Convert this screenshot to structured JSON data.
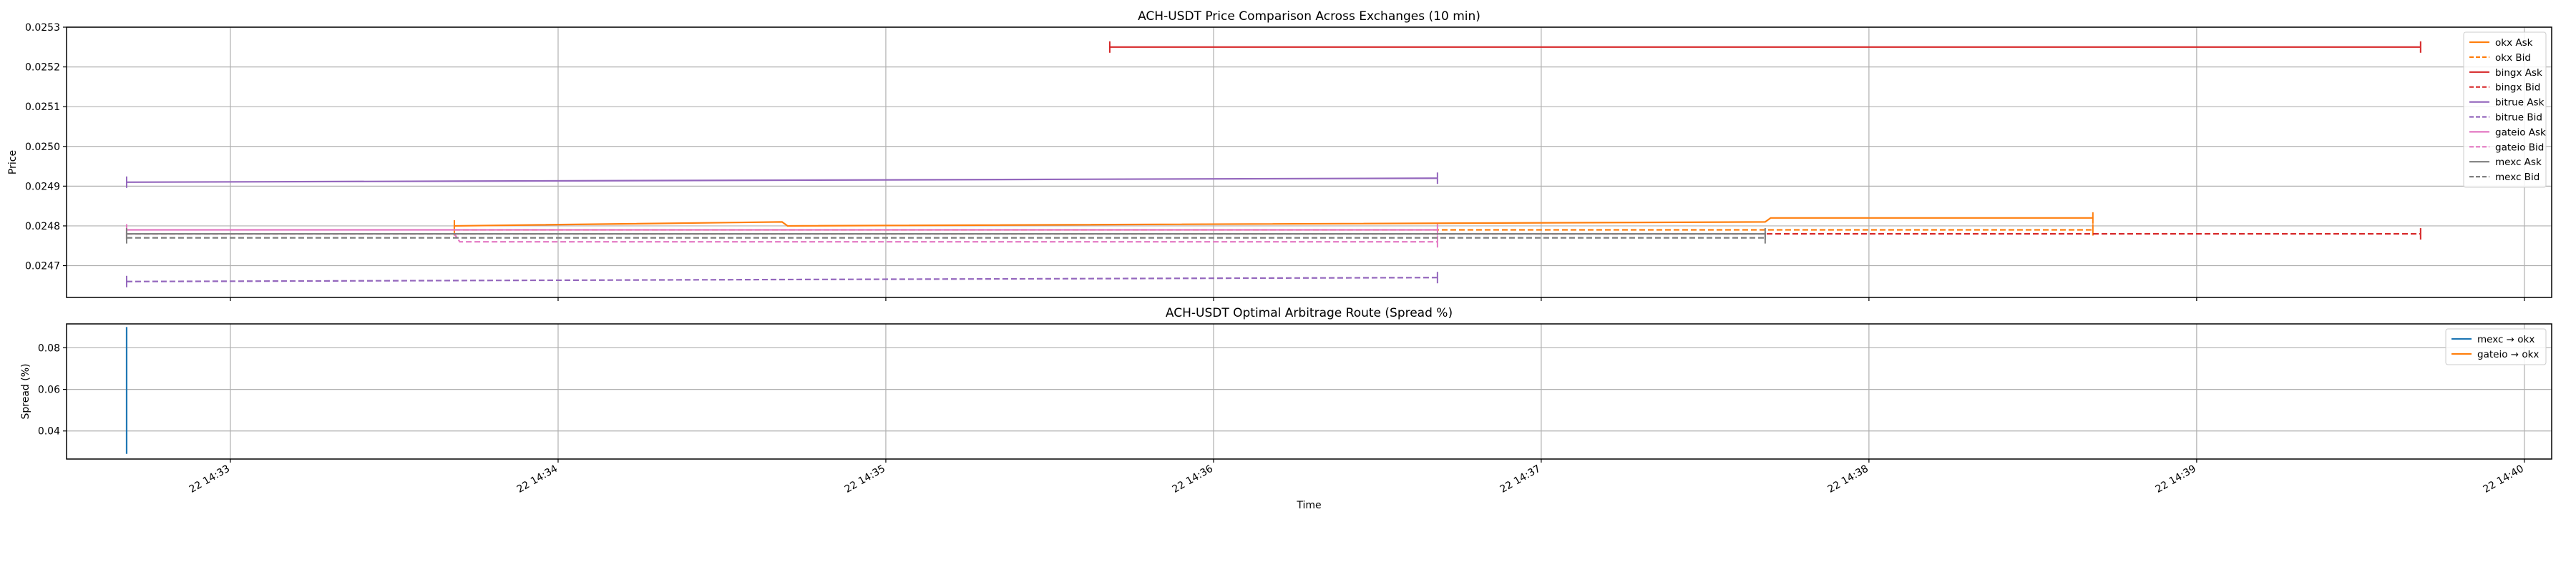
{
  "chart_data": [
    {
      "type": "line",
      "title": "ACH-USDT Price Comparison Across Exchanges (10 min)",
      "xlabel": "",
      "ylabel": "Price",
      "x_axis": "time",
      "xlim": [
        "2023-01-22 14:32:30",
        "2023-01-22 14:40:05"
      ],
      "ylim": [
        0.02462,
        0.0253
      ],
      "yticks": [
        0.0247,
        0.0248,
        0.0249,
        0.025,
        0.0251,
        0.0252,
        0.0253
      ],
      "grid": true,
      "legend": "top-right",
      "series": [
        {
          "name": "okx Ask",
          "color": "#ff7f0e",
          "dash": false,
          "x": [
            "2023-01-22 14:33:41",
            "2023-01-22 14:34:41",
            "2023-01-22 14:34:42",
            "2023-01-22 14:37:41",
            "2023-01-22 14:37:42",
            "2023-01-22 14:38:41"
          ],
          "y": [
            0.0248,
            0.02481,
            0.0248,
            0.02481,
            0.02482,
            0.02482
          ]
        },
        {
          "name": "okx Bid",
          "color": "#ff7f0e",
          "dash": true,
          "x": [
            "2023-01-22 14:33:41",
            "2023-01-22 14:38:41"
          ],
          "y": [
            0.02479,
            0.02479
          ]
        },
        {
          "name": "bingx Ask",
          "color": "#d62728",
          "dash": false,
          "x": [
            "2023-01-22 14:35:41",
            "2023-01-22 14:39:41"
          ],
          "y": [
            0.02525,
            0.02525
          ]
        },
        {
          "name": "bingx Bid",
          "color": "#d62728",
          "dash": true,
          "x": [
            "2023-01-22 14:32:41",
            "2023-01-22 14:39:41"
          ],
          "y": [
            0.02478,
            0.02478
          ]
        },
        {
          "name": "bitrue Ask",
          "color": "#9467bd",
          "dash": false,
          "x": [
            "2023-01-22 14:32:41",
            "2023-01-22 14:36:41"
          ],
          "y": [
            0.02491,
            0.02492
          ]
        },
        {
          "name": "bitrue Bid",
          "color": "#9467bd",
          "dash": true,
          "x": [
            "2023-01-22 14:32:41",
            "2023-01-22 14:36:41"
          ],
          "y": [
            0.02466,
            0.02467
          ]
        },
        {
          "name": "gateio Ask",
          "color": "#e377c2",
          "dash": false,
          "x": [
            "2023-01-22 14:32:41",
            "2023-01-22 14:36:41"
          ],
          "y": [
            0.02479,
            0.02479
          ]
        },
        {
          "name": "gateio Bid",
          "color": "#e377c2",
          "dash": true,
          "x": [
            "2023-01-22 14:32:41",
            "2023-01-22 14:33:41",
            "2023-01-22 14:33:42",
            "2023-01-22 14:36:41"
          ],
          "y": [
            0.02478,
            0.02478,
            0.02476,
            0.02476
          ]
        },
        {
          "name": "mexc Ask",
          "color": "#7f7f7f",
          "dash": false,
          "x": [
            "2023-01-22 14:32:41",
            "2023-01-22 14:37:41"
          ],
          "y": [
            0.02478,
            0.02478
          ]
        },
        {
          "name": "mexc Bid",
          "color": "#7f7f7f",
          "dash": true,
          "x": [
            "2023-01-22 14:32:41",
            "2023-01-22 14:37:41"
          ],
          "y": [
            0.02477,
            0.02477
          ]
        }
      ]
    },
    {
      "type": "line",
      "title": "ACH-USDT Optimal Arbitrage Route (Spread %)",
      "xlabel": "Time",
      "ylabel": "Spread (%)",
      "x_axis": "time",
      "xlim": [
        "2023-01-22 14:32:30",
        "2023-01-22 14:40:05"
      ],
      "ylim": [
        0.0265,
        0.0915
      ],
      "yticks": [
        0.04,
        0.06,
        0.08
      ],
      "xticks": [
        {
          "x": "2023-01-22 14:33:00",
          "label": "22 14:33"
        },
        {
          "x": "2023-01-22 14:34:00",
          "label": "22 14:34"
        },
        {
          "x": "2023-01-22 14:35:00",
          "label": "22 14:35"
        },
        {
          "x": "2023-01-22 14:36:00",
          "label": "22 14:36"
        },
        {
          "x": "2023-01-22 14:37:00",
          "label": "22 14:37"
        },
        {
          "x": "2023-01-22 14:38:00",
          "label": "22 14:38"
        },
        {
          "x": "2023-01-22 14:39:00",
          "label": "22 14:39"
        },
        {
          "x": "2023-01-22 14:40:00",
          "label": "22 14:40"
        }
      ],
      "grid": true,
      "legend": "top-right",
      "series": [
        {
          "name": "mexc → okx",
          "color": "#1f77b4",
          "x": [
            "2023-01-22 14:32:41",
            "2023-01-22 14:32:41"
          ],
          "y": [
            0.09,
            0.029
          ]
        },
        {
          "name": "gateio → okx",
          "color": "#ff7f0e",
          "x": [],
          "y": []
        }
      ]
    }
  ]
}
